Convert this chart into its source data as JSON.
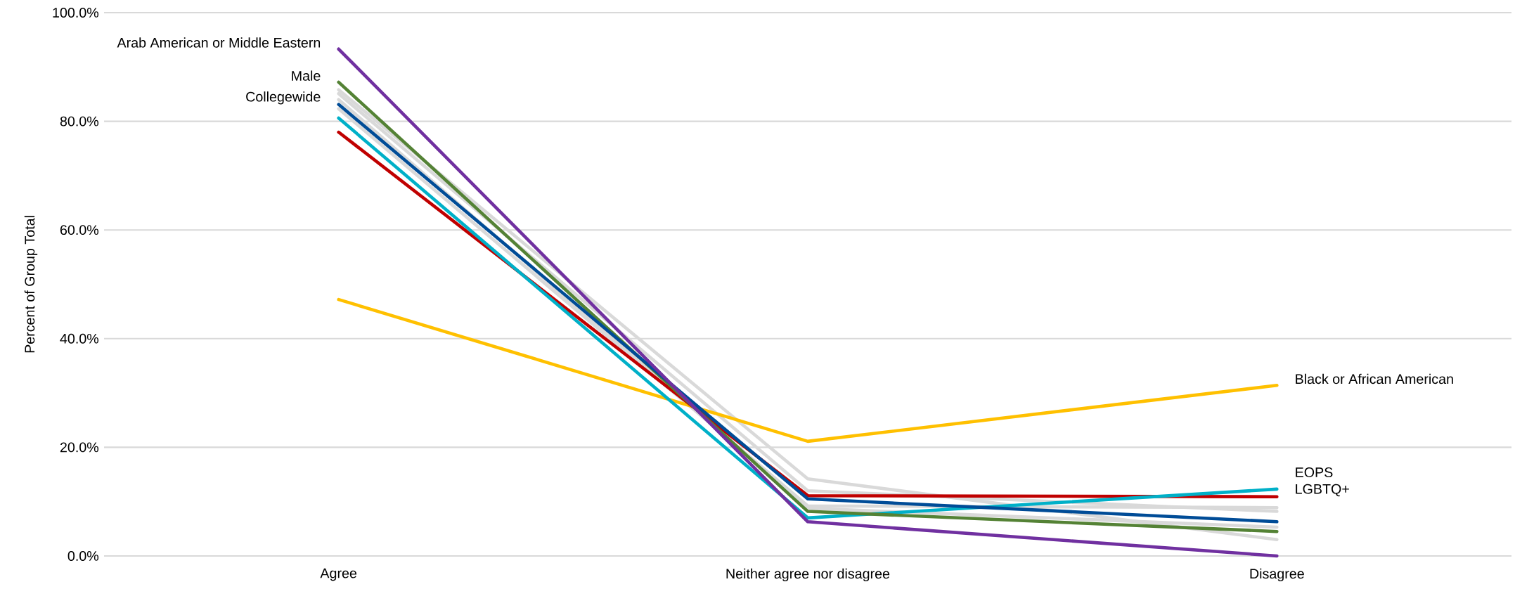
{
  "chart_data": {
    "type": "line",
    "ylabel": "Percent of Group Total",
    "categories": [
      "Agree",
      "Neither agree nor disagree",
      "Disagree"
    ],
    "series": [
      {
        "color": "#d9d9d9",
        "values": [
          85.8,
          14.2,
          3.0
        ]
      },
      {
        "color": "#d9d9d9",
        "values": [
          85.1,
          12.0,
          8.2
        ]
      },
      {
        "color": "#d9d9d9",
        "values": [
          82.3,
          9.2,
          8.9
        ]
      },
      {
        "color": "#d9d9d9",
        "values": [
          84.0,
          8.8,
          5.3
        ]
      },
      {
        "name": "Black or African American",
        "color": "#ffc000",
        "values": [
          47.2,
          21.1,
          31.4
        ]
      },
      {
        "name": "LGBTQ+",
        "color": "#c00000",
        "values": [
          78.0,
          11.1,
          10.9
        ]
      },
      {
        "name": "EOPS",
        "color": "#00b0c8",
        "values": [
          80.6,
          7.0,
          12.3
        ]
      },
      {
        "name": "Male",
        "color": "#548235",
        "values": [
          87.2,
          8.2,
          4.5
        ]
      },
      {
        "name": "Collegewide",
        "color": "#004c97",
        "values": [
          83.1,
          10.5,
          6.3
        ]
      },
      {
        "name": "Arab American or Middle Eastern",
        "color": "#7030a0",
        "values": [
          93.3,
          6.3,
          0.0
        ]
      }
    ],
    "ylim": [
      0,
      100
    ],
    "yticks": [
      {
        "value": 0,
        "label": "0.0%"
      },
      {
        "value": 20,
        "label": "20.0%"
      },
      {
        "value": 40,
        "label": "40.0%"
      },
      {
        "value": 60,
        "label": "60.0%"
      },
      {
        "value": 80,
        "label": "80.0%"
      },
      {
        "value": 100,
        "label": "100.0%"
      }
    ],
    "grid": "y",
    "legend": false,
    "marker": "none",
    "line_style": "solid"
  }
}
